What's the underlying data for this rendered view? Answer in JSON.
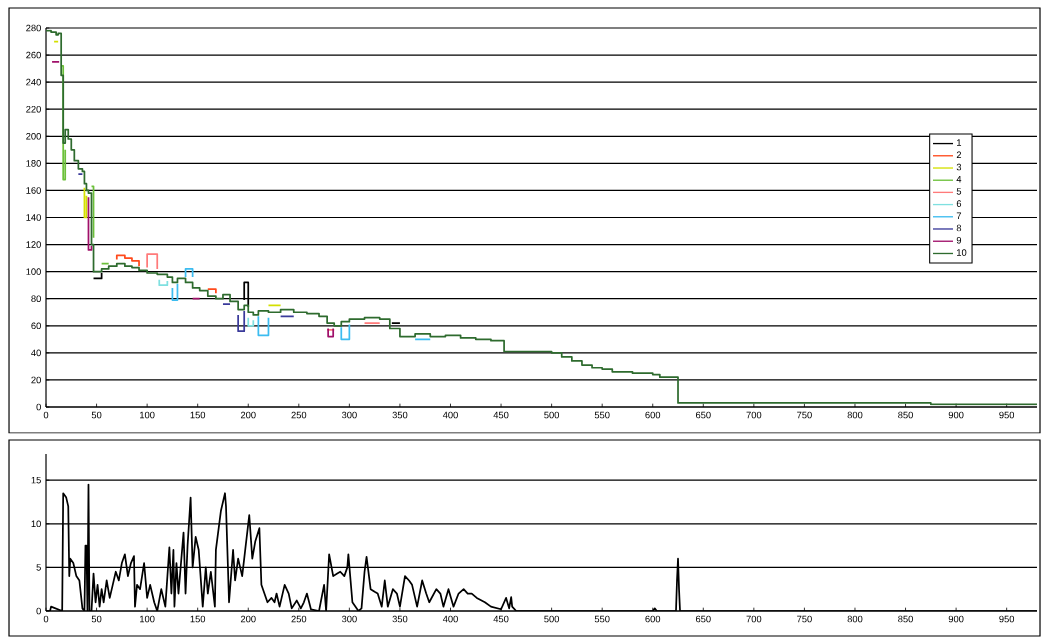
{
  "chart_data": [
    {
      "type": "step",
      "x": [
        0,
        5,
        10,
        12,
        15,
        17,
        19,
        22,
        25,
        28,
        32,
        36,
        38,
        40,
        42,
        45,
        47,
        55,
        62,
        70,
        78,
        85,
        92,
        100,
        110,
        120,
        125,
        130,
        138,
        145,
        152,
        160,
        168,
        175,
        182,
        190,
        196,
        200,
        205,
        210,
        220,
        232,
        245,
        258,
        270,
        278,
        285,
        292,
        300,
        315,
        330,
        340,
        350,
        365,
        380,
        395,
        410,
        425,
        440,
        453,
        470,
        500,
        510,
        520,
        530,
        540,
        550,
        560,
        580,
        600,
        607,
        625,
        700,
        800,
        875,
        980
      ],
      "series": [
        {
          "name": "1",
          "color": "#000000",
          "type": "line",
          "x": [
            47,
            55,
            55,
            null,
            196,
            196,
            200,
            200,
            null,
            342,
            350
          ],
          "values": [
            95,
            95,
            99,
            null,
            79,
            92,
            92,
            74,
            null,
            62,
            62
          ]
        },
        {
          "name": "2",
          "color": "#ff4a1c",
          "type": "line",
          "x": [
            70,
            70,
            78,
            78,
            85,
            85,
            92,
            92,
            null,
            160,
            168,
            168
          ],
          "values": [
            109,
            112,
            112,
            110,
            110,
            108,
            108,
            104,
            null,
            87,
            87,
            84
          ]
        },
        {
          "name": "3",
          "color": "#d4e000",
          "type": "line",
          "x": [
            8,
            12,
            null,
            38,
            38,
            40,
            40,
            null,
            220,
            232
          ],
          "values": [
            270,
            270,
            null,
            162,
            140,
            140,
            156,
            null,
            75,
            75
          ]
        },
        {
          "name": "4",
          "color": "#6cc03a",
          "type": "line",
          "x": [
            15,
            17,
            17,
            19,
            19,
            null,
            45,
            47,
            47,
            null,
            55,
            62
          ],
          "values": [
            252,
            252,
            168,
            168,
            190,
            null,
            163,
            163,
            125,
            null,
            106,
            106
          ]
        },
        {
          "name": "5",
          "color": "#ff7a7a",
          "type": "line",
          "x": [
            100,
            100,
            110,
            110,
            null,
            278,
            285,
            null,
            315,
            330
          ],
          "values": [
            103,
            113,
            113,
            102,
            null,
            57,
            57,
            null,
            62,
            62
          ]
        },
        {
          "name": "6",
          "color": "#7fe0e0",
          "type": "line",
          "x": [
            112,
            112,
            120,
            120,
            null,
            200,
            200,
            205,
            205
          ],
          "values": [
            94,
            90,
            90,
            93,
            null,
            66,
            60,
            60,
            64
          ]
        },
        {
          "name": "7",
          "color": "#3cbcf0",
          "type": "line",
          "x": [
            125,
            125,
            130,
            130,
            null,
            138,
            138,
            145,
            145,
            null,
            210,
            210,
            220,
            220,
            null,
            292,
            292,
            300,
            300,
            null,
            365,
            380
          ],
          "values": [
            88,
            79,
            79,
            91,
            null,
            96,
            102,
            102,
            96,
            null,
            67,
            53,
            53,
            66,
            null,
            59,
            50,
            50,
            61,
            null,
            50,
            50
          ]
        },
        {
          "name": "8",
          "color": "#3a3a9a",
          "type": "line",
          "x": [
            32,
            36,
            null,
            175,
            182,
            null,
            190,
            190,
            196,
            196,
            null,
            232,
            245
          ],
          "values": [
            172,
            172,
            null,
            76,
            76,
            null,
            68,
            56,
            56,
            71,
            null,
            67,
            67
          ]
        },
        {
          "name": "9",
          "color": "#a0106a",
          "type": "line",
          "x": [
            6,
            13,
            null,
            42,
            42,
            45,
            45,
            null,
            145,
            152,
            null,
            279,
            279,
            284,
            284
          ],
          "values": [
            255,
            255,
            null,
            155,
            116,
            116,
            119,
            null,
            80,
            80,
            null,
            58,
            52,
            52,
            58
          ]
        },
        {
          "name": "10",
          "color": "#2e6b2e",
          "values": [
            278,
            277,
            275,
            276,
            245,
            195,
            205,
            198,
            190,
            182,
            176,
            174,
            165,
            160,
            158,
            120,
            100,
            102,
            104,
            106,
            104,
            103,
            101,
            99,
            98,
            96,
            92,
            95,
            92,
            88,
            86,
            82,
            80,
            83,
            78,
            72,
            75,
            70,
            68,
            71,
            70,
            72,
            70,
            69,
            67,
            62,
            60,
            63,
            65,
            66,
            65,
            58,
            52,
            54,
            52,
            53,
            51,
            50,
            49,
            41,
            41,
            40,
            37,
            34,
            31,
            29,
            28,
            26,
            25,
            24,
            22,
            3,
            3,
            3,
            2,
            2
          ]
        }
      ],
      "xlim": [
        0,
        980
      ],
      "xticks": [
        0,
        50,
        100,
        150,
        200,
        250,
        300,
        350,
        400,
        450,
        500,
        550,
        600,
        650,
        700,
        750,
        800,
        850,
        900,
        950
      ],
      "ylim": [
        0,
        280
      ],
      "yticks": [
        0,
        20,
        40,
        60,
        80,
        100,
        120,
        140,
        160,
        180,
        200,
        220,
        240,
        260,
        280
      ],
      "grid": "y",
      "legend": "right"
    },
    {
      "type": "line",
      "x": [
        0,
        4,
        5,
        16,
        17,
        20,
        22,
        23,
        24,
        27,
        30,
        33,
        36,
        38,
        39,
        40,
        41,
        42,
        43,
        45,
        47,
        49,
        51,
        53,
        55,
        57,
        60,
        63,
        66,
        69,
        72,
        75,
        78,
        81,
        84,
        87,
        88,
        90,
        93,
        97,
        100,
        103,
        107,
        110,
        114,
        118,
        122,
        124,
        126,
        127,
        129,
        131,
        136,
        138,
        140,
        143,
        145,
        148,
        151,
        155,
        158,
        160,
        163,
        167,
        168,
        173,
        177,
        178,
        181,
        185,
        187,
        190,
        194,
        197,
        201,
        204,
        207,
        211,
        213,
        216,
        219,
        223,
        226,
        228,
        231,
        236,
        240,
        243,
        248,
        252,
        255,
        258,
        262,
        270,
        275,
        277,
        280,
        284,
        288,
        291,
        295,
        298,
        299,
        303,
        309,
        312,
        315,
        317,
        321,
        325,
        328,
        332,
        335,
        338,
        343,
        347,
        350,
        355,
        359,
        362,
        367,
        372,
        376,
        379,
        386,
        390,
        393,
        398,
        403,
        408,
        413,
        417,
        421,
        426,
        434,
        440,
        450,
        455,
        458,
        460,
        461,
        465,
        600,
        602,
        604,
        620,
        623,
        624,
        625,
        626,
        627,
        980
      ],
      "series": [
        {
          "color": "#000000",
          "values": [
            0,
            0,
            0.5,
            0,
            13.5,
            13,
            12,
            4,
            6,
            5.5,
            4,
            3.5,
            0.3,
            0,
            7.5,
            7.5,
            0,
            14.5,
            0,
            0,
            4.3,
            1,
            3,
            0.5,
            2.5,
            1,
            3.5,
            1.5,
            3,
            4.5,
            3.5,
            5.5,
            6.5,
            4,
            5.5,
            6.3,
            0.5,
            3,
            2.5,
            5.5,
            1.5,
            3,
            1,
            0,
            2.5,
            0.5,
            7.3,
            2,
            7,
            0.5,
            5.5,
            2,
            9,
            2,
            7.5,
            13,
            5,
            8.5,
            7,
            0.5,
            5,
            2,
            4.5,
            0.5,
            7,
            11.5,
            13.5,
            12,
            1,
            7,
            3.5,
            6,
            4,
            7,
            11,
            6,
            8,
            9.5,
            3,
            2,
            1,
            1.5,
            1,
            2,
            0.5,
            3,
            2,
            0.3,
            1.2,
            0.3,
            1,
            2,
            0.2,
            0,
            3,
            0,
            6.5,
            4,
            4.3,
            4.5,
            4,
            5,
            6.5,
            1,
            0,
            0.3,
            4.5,
            6.2,
            2.5,
            2.2,
            2,
            0.5,
            3.5,
            0.5,
            2.5,
            2,
            0.5,
            4,
            3.5,
            3,
            0.5,
            3.5,
            2,
            1,
            2.5,
            2,
            0.5,
            2.5,
            0.5,
            2,
            2.5,
            2,
            2,
            1.5,
            1,
            0.5,
            0.2,
            1.5,
            0.3,
            1.6,
            0.5,
            0,
            0,
            0.3,
            0,
            0,
            0,
            3.5,
            6,
            2.5,
            0,
            0
          ]
        }
      ],
      "xlim": [
        0,
        980
      ],
      "xticks": [
        0,
        50,
        100,
        150,
        200,
        250,
        300,
        350,
        400,
        450,
        500,
        550,
        600,
        650,
        700,
        750,
        800,
        850,
        900,
        950
      ],
      "ylim": [
        0,
        18
      ],
      "yticks": [
        0,
        5,
        10,
        15
      ],
      "grid": "y"
    }
  ]
}
